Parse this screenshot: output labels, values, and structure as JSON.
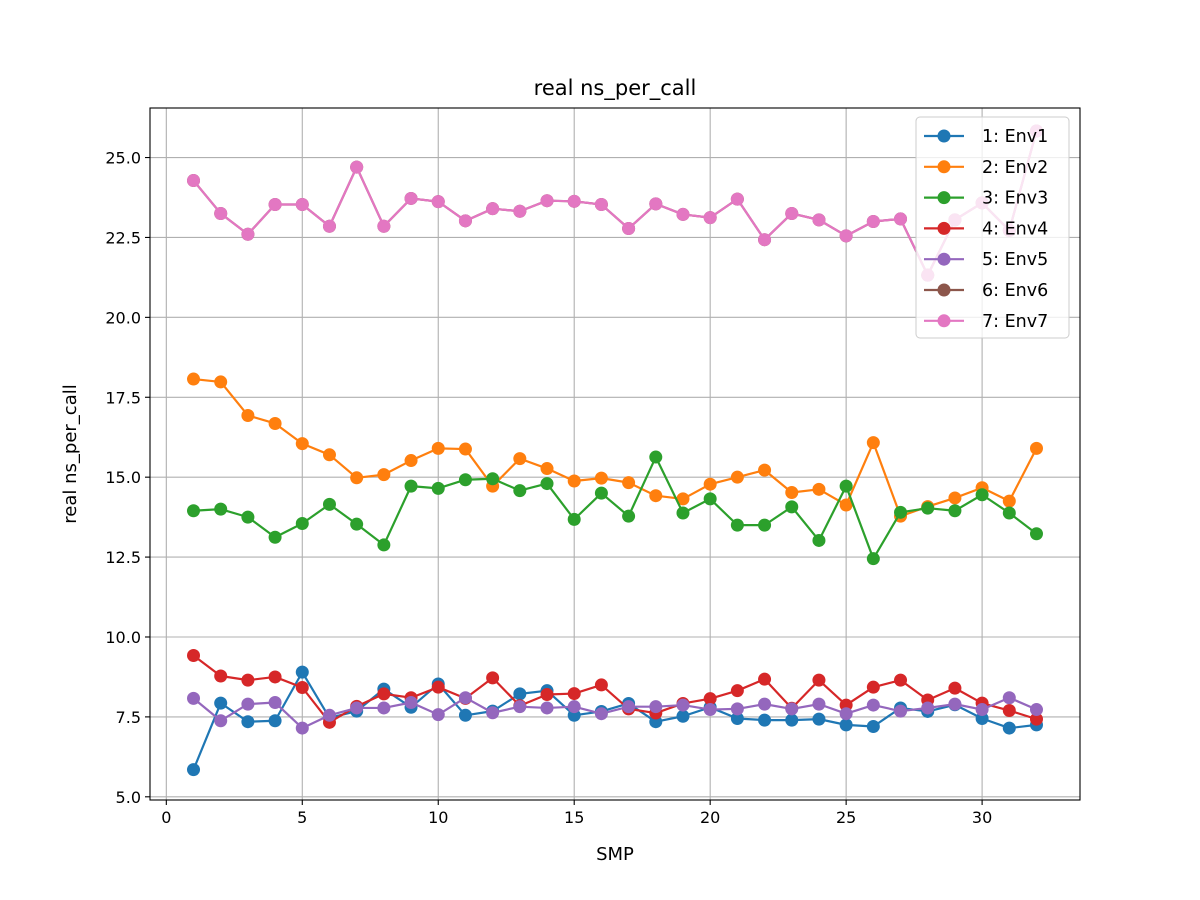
{
  "chart_data": {
    "type": "line",
    "title": "real ns_per_call",
    "xlabel": "SMP",
    "ylabel": "real ns_per_call",
    "xlim": [
      -0.6,
      33.6
    ],
    "ylim": [
      4.9,
      26.55
    ],
    "xticks": [
      0,
      5,
      10,
      15,
      20,
      25,
      30
    ],
    "yticks": [
      5.0,
      7.5,
      10.0,
      12.5,
      15.0,
      17.5,
      20.0,
      22.5,
      25.0
    ],
    "grid": true,
    "legend_position": "top-right",
    "x": [
      1,
      2,
      3,
      4,
      5,
      6,
      7,
      8,
      9,
      10,
      11,
      12,
      13,
      14,
      15,
      16,
      17,
      18,
      19,
      20,
      21,
      22,
      23,
      24,
      25,
      26,
      27,
      28,
      29,
      30,
      31,
      32
    ],
    "series": [
      {
        "name": "1: Env1",
        "color": "#1f77b4",
        "values": [
          5.85,
          7.93,
          7.35,
          7.38,
          8.9,
          7.47,
          7.68,
          8.37,
          7.8,
          8.53,
          7.55,
          7.68,
          8.22,
          8.32,
          7.55,
          7.67,
          7.92,
          7.35,
          7.52,
          7.8,
          7.45,
          7.4,
          7.4,
          7.43,
          7.25,
          7.2,
          7.78,
          7.67,
          7.88,
          7.45,
          7.15,
          7.25
        ]
      },
      {
        "name": "2: Env2",
        "color": "#ff7f0e",
        "values": [
          18.07,
          17.98,
          16.93,
          16.68,
          16.05,
          15.7,
          14.98,
          15.08,
          15.52,
          15.9,
          15.88,
          14.72,
          15.58,
          15.27,
          14.88,
          14.97,
          14.83,
          14.42,
          14.32,
          14.78,
          15.0,
          15.22,
          14.52,
          14.62,
          14.13,
          16.08,
          13.78,
          14.08,
          14.35,
          14.67,
          14.25,
          15.9
        ]
      },
      {
        "name": "3: Env3",
        "color": "#2ca02c",
        "values": [
          13.95,
          14.0,
          13.75,
          13.12,
          13.55,
          14.15,
          13.53,
          12.88,
          14.72,
          14.65,
          14.92,
          14.95,
          14.58,
          14.8,
          13.68,
          14.5,
          13.78,
          15.63,
          13.88,
          14.32,
          13.5,
          13.5,
          14.07,
          13.02,
          14.72,
          12.45,
          13.9,
          14.03,
          13.95,
          14.45,
          13.88,
          13.23
        ]
      },
      {
        "name": "4: Env4",
        "color": "#d62728",
        "values": [
          9.42,
          8.78,
          8.65,
          8.75,
          8.42,
          7.33,
          7.83,
          8.22,
          8.1,
          8.43,
          8.08,
          8.72,
          7.85,
          8.2,
          8.23,
          8.5,
          7.75,
          7.62,
          7.92,
          8.07,
          8.32,
          8.68,
          7.77,
          8.65,
          7.87,
          8.43,
          8.65,
          8.03,
          8.4,
          7.93,
          7.7,
          7.43
        ]
      },
      {
        "name": "5: Env5",
        "color": "#9467bd",
        "values": [
          8.08,
          7.38,
          7.9,
          7.95,
          7.15,
          7.55,
          7.78,
          7.78,
          7.95,
          7.57,
          8.1,
          7.63,
          7.82,
          7.78,
          7.82,
          7.6,
          7.82,
          7.82,
          7.87,
          7.73,
          7.75,
          7.9,
          7.75,
          7.9,
          7.6,
          7.87,
          7.68,
          7.78,
          7.9,
          7.73,
          8.1,
          7.73
        ]
      },
      {
        "name": "6: Env6",
        "color": "#8c564b",
        "values": [
          24.28,
          23.25,
          22.6,
          23.53,
          23.53,
          22.85,
          24.7,
          22.85,
          23.72,
          23.62,
          23.02,
          23.4,
          23.32,
          23.65,
          23.63,
          23.53,
          22.78,
          23.55,
          23.22,
          23.12,
          23.7,
          22.43,
          23.25,
          23.05,
          22.55,
          23.0,
          23.08,
          21.32,
          23.05,
          23.58,
          22.72,
          25.83
        ]
      },
      {
        "name": "7: Env7",
        "color": "#e377c2",
        "values": [
          24.28,
          23.25,
          22.6,
          23.53,
          23.53,
          22.85,
          24.7,
          22.85,
          23.72,
          23.62,
          23.02,
          23.4,
          23.32,
          23.65,
          23.63,
          23.53,
          22.78,
          23.55,
          23.22,
          23.12,
          23.7,
          22.43,
          23.25,
          23.05,
          22.55,
          23.0,
          23.08,
          21.32,
          23.05,
          23.58,
          22.72,
          25.83
        ]
      }
    ]
  }
}
